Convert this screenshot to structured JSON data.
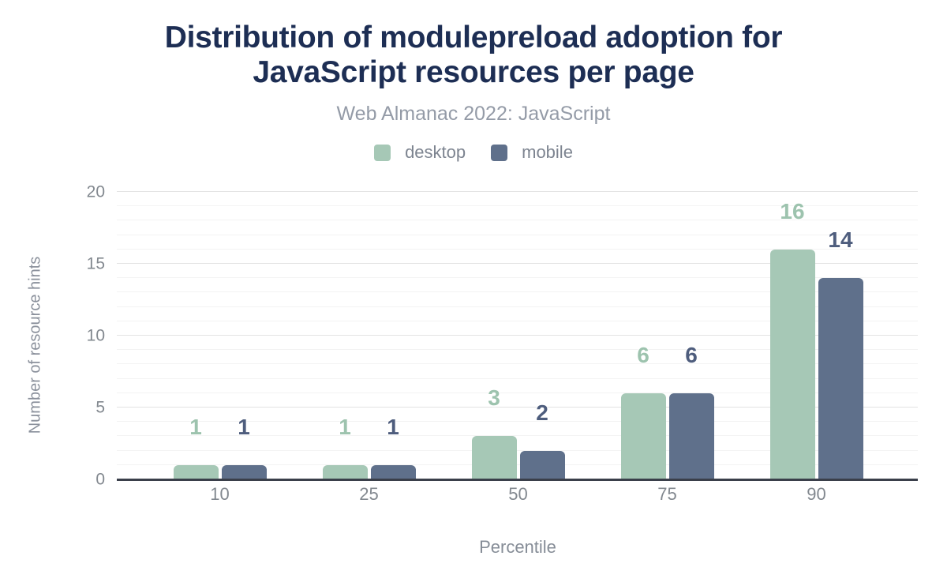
{
  "header": {
    "title_line1": "Distribution of modulepreload adoption for",
    "title_line2": "JavaScript resources per page",
    "subtitle": "Web Almanac 2022: JavaScript"
  },
  "chart_data": {
    "type": "bar",
    "title": "Distribution of modulepreload adoption for JavaScript resources per page",
    "subtitle": "Web Almanac 2022: JavaScript",
    "categories": [
      "10",
      "25",
      "50",
      "75",
      "90"
    ],
    "series": [
      {
        "name": "desktop",
        "color": "#a6c8b6",
        "label_color": "#9dc3ae",
        "values": [
          1,
          1,
          3,
          6,
          16
        ]
      },
      {
        "name": "mobile",
        "color": "#5f708b",
        "label_color": "#4e5d7d",
        "values": [
          1,
          1,
          2,
          6,
          14
        ]
      }
    ],
    "xlabel": "Percentile",
    "ylabel": "Number of resource hints",
    "ylim": [
      0,
      20
    ],
    "y_ticks": [
      0,
      5,
      10,
      15,
      20
    ],
    "grid": {
      "horizontal": true,
      "minor_step": 1,
      "major_step": 5
    },
    "legend_position": "top",
    "data_labels": "above bars, colored per series"
  },
  "colors": {
    "background": "#ffffff",
    "title": "#1d2e54",
    "subtitle": "#949ba7",
    "axis_text": "#82888f",
    "axis_line": "#3a3f4a",
    "grid_minor": "#f3f3f3",
    "grid_major": "#e3e3e3"
  }
}
